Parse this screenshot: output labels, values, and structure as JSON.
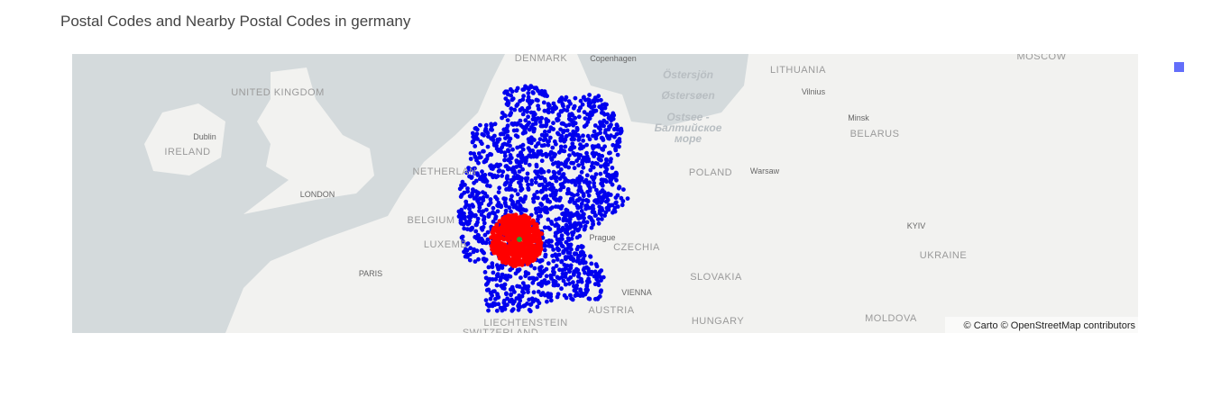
{
  "header": {
    "title": "Postal Codes and Nearby Postal Codes in germany"
  },
  "map": {
    "labels": [
      "DENMARK",
      "Copenhagen",
      "LITHUANIA",
      "MOSCOW",
      "Östersjön",
      "Østersøen",
      "Vilnius",
      "UNITED KINGDOM",
      "Minsk",
      "Ostsee -",
      "Балтийское",
      "море",
      "Dublin",
      "BELARUS",
      "IRELAND",
      "NETHERLAN",
      "POLAND",
      "Warsaw",
      "LONDON",
      "BELGIUM",
      "KYIV",
      "LUXEMB",
      "Prague",
      "CZECHIA",
      "UKRAINE",
      "PARIS",
      "SLOVAKIA",
      "VIENNA",
      "AUSTRIA",
      "HUNGARY",
      "MOLDOVA",
      "LIECHTENSTEIN",
      "SWITZERLAND"
    ],
    "attribution": "© Carto © OpenStreetMap contributors"
  }
}
